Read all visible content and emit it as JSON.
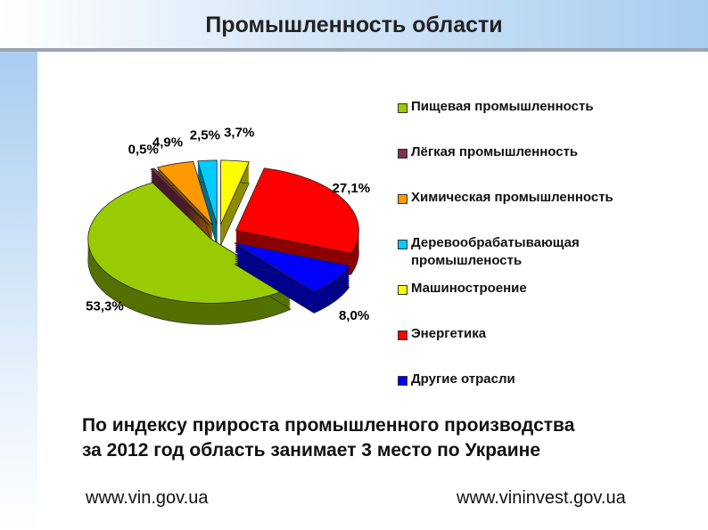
{
  "header": {
    "title": "Промышленность области"
  },
  "chart_data": {
    "type": "pie3d",
    "categories": [
      "Пищевая промышленность",
      "Лёгкая промышленность",
      "Химическая промышленность",
      "Деревообрабатывающая промышленость",
      "Машиностроение",
      "Энергетика",
      "Другие отрасли"
    ],
    "values": [
      53.3,
      0.5,
      4.9,
      2.5,
      3.7,
      27.1,
      8.0
    ],
    "value_labels": [
      "53,3%",
      "0,5%",
      "4,9%",
      "2,5%",
      "3,7%",
      "27,1%",
      "8,0%"
    ],
    "colors": [
      "#99cc00",
      "#7f2f4f",
      "#ff9900",
      "#00ccff",
      "#ffff00",
      "#ff0000",
      "#0000ff"
    ],
    "legend": "right"
  },
  "body": {
    "lines": [
      "По индексу прироста промышленного производства",
      "за 2012 год область занимает 3 место по Украине"
    ]
  },
  "footer": {
    "left": "www.vin.gov.ua",
    "right": "www.vininvest.gov.ua"
  }
}
